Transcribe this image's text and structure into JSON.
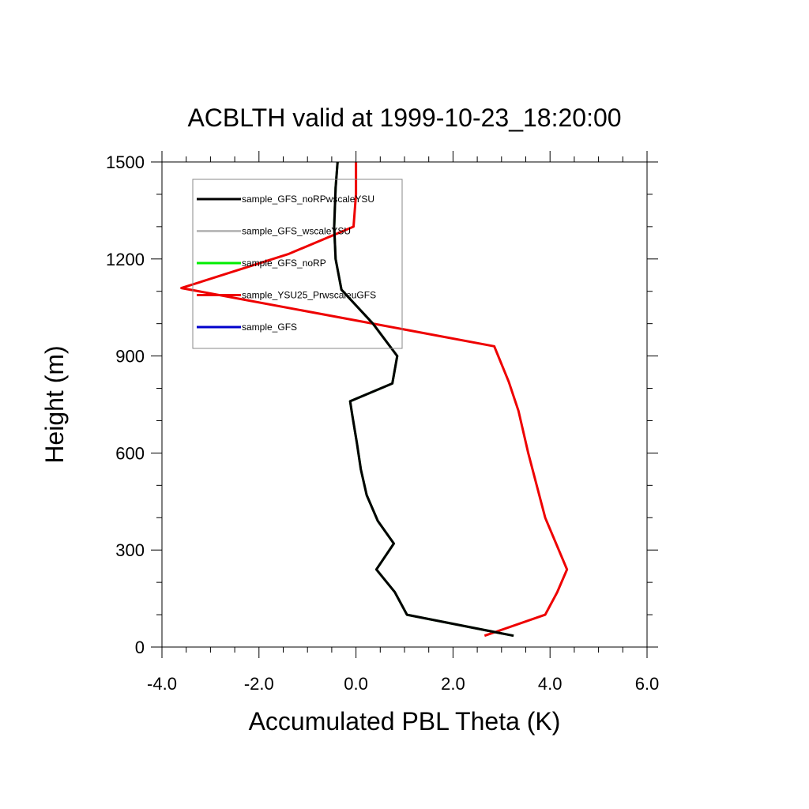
{
  "chart_data": {
    "type": "line",
    "title": "ACBLTH valid at 1999-10-23_18:20:00",
    "xlabel": "Accumulated PBL Theta (K)",
    "ylabel": "Height (m)",
    "xlim": [
      -4.0,
      6.0
    ],
    "ylim": [
      0,
      1500
    ],
    "xticks": [
      -4.0,
      -2.0,
      0.0,
      2.0,
      4.0,
      6.0
    ],
    "xtick_labels": [
      "-4.0",
      "-2.0",
      "0.0",
      "2.0",
      "4.0",
      "6.0"
    ],
    "yticks": [
      0,
      300,
      600,
      900,
      1200,
      1500
    ],
    "ytick_labels": [
      "0",
      "300",
      "600",
      "900",
      "1200",
      "1500"
    ],
    "grid": false,
    "legend_position": "top-left",
    "series": [
      {
        "name": "sample_GFS_noRPwscaleYSU",
        "color": "#000000",
        "x": [
          3.25,
          1.05,
          0.8,
          0.42,
          0.78,
          0.45,
          0.22,
          0.1,
          0.02,
          -0.08,
          -0.12,
          0.75,
          0.85,
          0.35,
          -0.3,
          -0.42,
          -0.45,
          -0.42,
          -0.38
        ],
        "y": [
          35,
          100,
          170,
          240,
          320,
          390,
          470,
          550,
          630,
          720,
          760,
          815,
          900,
          1000,
          1105,
          1200,
          1300,
          1420,
          1500
        ]
      },
      {
        "name": "sample_GFS_wscaleYSU",
        "color": "#bbbbbb",
        "x": [
          3.25,
          1.05,
          0.8,
          0.42,
          0.78,
          0.45,
          0.22,
          0.1,
          0.02,
          -0.08,
          -0.12,
          0.75,
          0.85,
          0.35,
          -0.3,
          -0.42,
          -0.45,
          -0.42,
          -0.38
        ],
        "y": [
          35,
          100,
          170,
          240,
          320,
          390,
          470,
          550,
          630,
          720,
          760,
          815,
          900,
          1000,
          1105,
          1200,
          1300,
          1420,
          1500
        ]
      },
      {
        "name": "sample_GFS_noRP",
        "color": "#00ee00",
        "x": [
          3.25,
          1.05,
          0.8,
          0.42,
          0.78,
          0.45,
          0.22,
          0.1,
          0.02,
          -0.08,
          -0.12,
          0.75,
          0.85,
          0.35,
          -0.3,
          -0.42,
          -0.45,
          -0.42,
          -0.38
        ],
        "y": [
          35,
          100,
          170,
          240,
          320,
          390,
          470,
          550,
          630,
          720,
          760,
          815,
          900,
          1000,
          1105,
          1200,
          1300,
          1420,
          1500
        ]
      },
      {
        "name": "sample_YSU25_PrwscaleuGFS",
        "color": "#ee0000",
        "x": [
          2.65,
          3.9,
          4.15,
          4.35,
          3.9,
          3.55,
          3.35,
          3.15,
          2.85,
          0.0,
          -3.6,
          -1.4,
          -0.05,
          0.0,
          0.0,
          0.0
        ],
        "y": [
          35,
          100,
          170,
          240,
          400,
          600,
          730,
          820,
          930,
          1010,
          1110,
          1215,
          1300,
          1400,
          1500,
          1500
        ]
      },
      {
        "name": "sample_GFS",
        "color": "#0000cc",
        "x": [],
        "y": []
      }
    ]
  }
}
